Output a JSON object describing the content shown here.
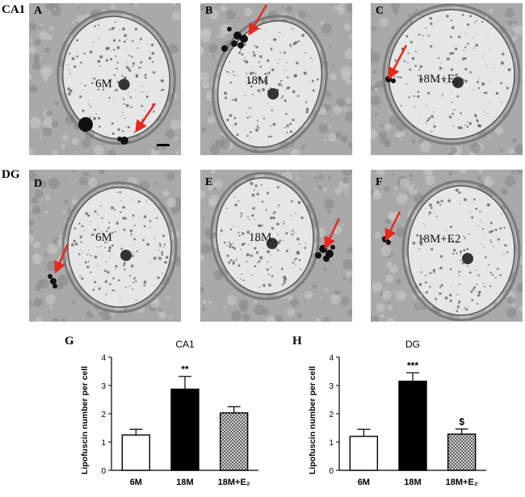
{
  "row_labels": [
    "CA1",
    "DG"
  ],
  "micrographs": [
    {
      "letter": "A",
      "group": "6M"
    },
    {
      "letter": "B",
      "group": "18M"
    },
    {
      "letter": "C",
      "group": "18M+E₂"
    },
    {
      "letter": "D",
      "group": "6M"
    },
    {
      "letter": "E",
      "group": "18M"
    },
    {
      "letter": "F",
      "group": "18M+E2"
    }
  ],
  "colors": {
    "arrow": "#e8281f",
    "bar_6M": "#ffffff",
    "bar_18M": "#000000",
    "bar_E2": "#9a9a9a"
  },
  "chart_data": [
    {
      "panel": "G",
      "type": "bar",
      "title": "CA1",
      "ylabel": "Lipofuscin number per cell",
      "xlabel": "",
      "categories": [
        "6M",
        "18M",
        "18M+E₂"
      ],
      "values": [
        1.25,
        2.87,
        2.03
      ],
      "errors": [
        0.2,
        0.45,
        0.22
      ],
      "significance": [
        "",
        "**",
        ""
      ],
      "ylim": [
        0,
        4
      ],
      "yticks": [
        "0",
        "1",
        "2",
        "3",
        "4"
      ],
      "fills": [
        "white",
        "black",
        "crosshatch"
      ],
      "grid": false,
      "legend": "none"
    },
    {
      "panel": "H",
      "type": "bar",
      "title": "DG",
      "ylabel": "Lipofuscin number per cell",
      "xlabel": "",
      "categories": [
        "6M",
        "18M",
        "18M+E₂"
      ],
      "values": [
        1.2,
        3.15,
        1.28
      ],
      "errors": [
        0.25,
        0.3,
        0.18
      ],
      "significance": [
        "",
        "***",
        "$"
      ],
      "ylim": [
        0,
        4
      ],
      "yticks": [
        "0",
        "1",
        "2",
        "3",
        "4"
      ],
      "fills": [
        "white",
        "black",
        "crosshatch"
      ],
      "grid": false,
      "legend": "none"
    }
  ]
}
